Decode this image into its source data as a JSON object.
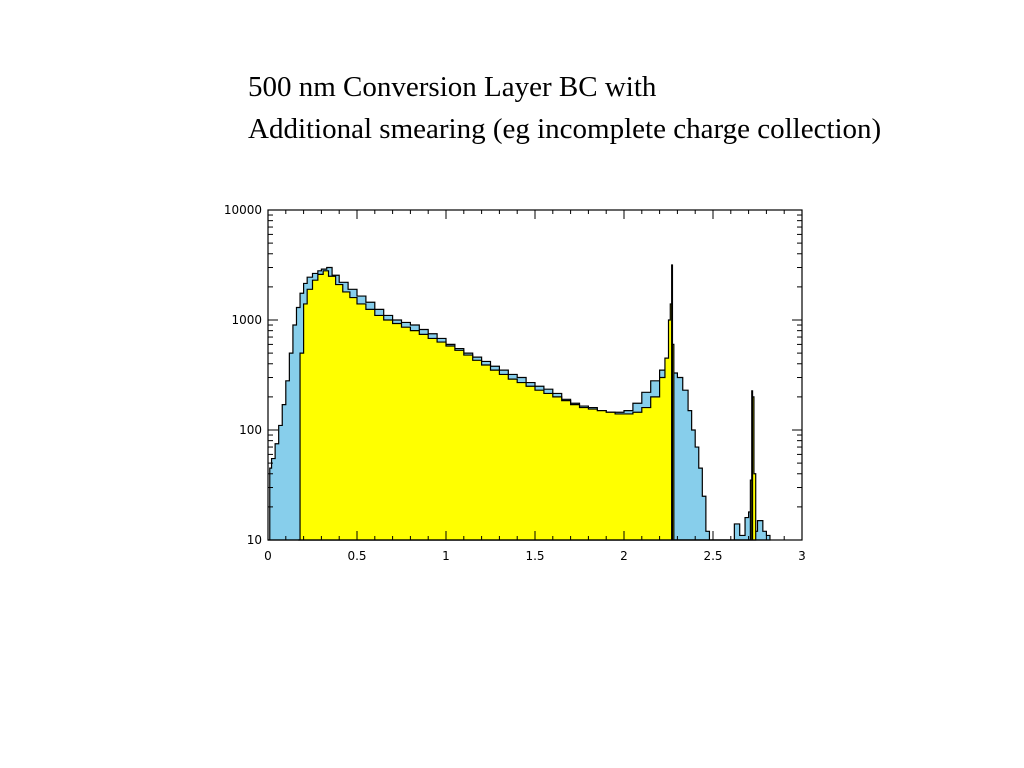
{
  "slide": {
    "title_line1": "500 nm Conversion Layer BC with",
    "title_line2": "Additional smearing (eg incomplete charge collection)"
  },
  "chart_data": {
    "type": "area",
    "title": "",
    "xlabel": "",
    "ylabel": "",
    "xlim": [
      0,
      3
    ],
    "ylim": [
      10,
      10000
    ],
    "yscale": "log",
    "grid": false,
    "x_ticks": [
      0,
      0.5,
      1,
      1.5,
      2,
      2.5,
      3
    ],
    "x_tick_labels": [
      "0",
      "0.5",
      "1",
      "1.5",
      "2",
      "2.5",
      "3"
    ],
    "y_ticks": [
      10,
      100,
      1000,
      10000
    ],
    "y_tick_labels": [
      "10",
      "100",
      "1000",
      "10000"
    ],
    "colors": {
      "series_blue": "#87CEEB",
      "series_yellow": "#FFFF00",
      "outline": "#000000"
    },
    "series": [
      {
        "color": "#87CEEB",
        "points": [
          [
            0,
            10
          ],
          [
            0.01,
            45
          ],
          [
            0.02,
            55
          ],
          [
            0.04,
            75
          ],
          [
            0.06,
            110
          ],
          [
            0.08,
            170
          ],
          [
            0.1,
            280
          ],
          [
            0.12,
            500
          ],
          [
            0.14,
            900
          ],
          [
            0.16,
            1300
          ],
          [
            0.18,
            1750
          ],
          [
            0.2,
            2150
          ],
          [
            0.22,
            2450
          ],
          [
            0.25,
            2650
          ],
          [
            0.28,
            2800
          ],
          [
            0.3,
            2900
          ],
          [
            0.33,
            3000
          ],
          [
            0.36,
            2550
          ],
          [
            0.4,
            2200
          ],
          [
            0.45,
            1900
          ],
          [
            0.5,
            1650
          ],
          [
            0.55,
            1450
          ],
          [
            0.6,
            1250
          ],
          [
            0.65,
            1100
          ],
          [
            0.7,
            1000
          ],
          [
            0.75,
            950
          ],
          [
            0.8,
            900
          ],
          [
            0.85,
            820
          ],
          [
            0.9,
            750
          ],
          [
            0.95,
            680
          ],
          [
            1.0,
            600
          ],
          [
            1.05,
            550
          ],
          [
            1.1,
            500
          ],
          [
            1.15,
            460
          ],
          [
            1.2,
            420
          ],
          [
            1.25,
            380
          ],
          [
            1.3,
            350
          ],
          [
            1.35,
            320
          ],
          [
            1.4,
            300
          ],
          [
            1.45,
            270
          ],
          [
            1.5,
            250
          ],
          [
            1.55,
            235
          ],
          [
            1.6,
            215
          ],
          [
            1.65,
            190
          ],
          [
            1.7,
            175
          ],
          [
            1.75,
            165
          ],
          [
            1.8,
            160
          ],
          [
            1.85,
            150
          ],
          [
            1.9,
            145
          ],
          [
            1.95,
            145
          ],
          [
            2.0,
            150
          ],
          [
            2.05,
            175
          ],
          [
            2.1,
            220
          ],
          [
            2.15,
            280
          ],
          [
            2.2,
            350
          ],
          [
            2.24,
            420
          ],
          [
            2.27,
            330
          ],
          [
            2.3,
            300
          ],
          [
            2.33,
            230
          ],
          [
            2.36,
            150
          ],
          [
            2.38,
            100
          ],
          [
            2.4,
            70
          ],
          [
            2.42,
            45
          ],
          [
            2.44,
            25
          ],
          [
            2.46,
            12
          ],
          [
            2.48,
            10
          ],
          [
            2.6,
            10
          ],
          [
            2.62,
            14
          ],
          [
            2.65,
            11
          ],
          [
            2.68,
            16
          ],
          [
            2.7,
            18
          ],
          [
            2.72,
            12
          ],
          [
            2.75,
            15
          ],
          [
            2.78,
            12
          ],
          [
            2.8,
            11
          ],
          [
            2.82,
            10
          ]
        ]
      },
      {
        "color": "#FFFF00",
        "points": [
          [
            0.17,
            10
          ],
          [
            0.18,
            500
          ],
          [
            0.2,
            1400
          ],
          [
            0.22,
            1900
          ],
          [
            0.25,
            2300
          ],
          [
            0.28,
            2600
          ],
          [
            0.31,
            2800
          ],
          [
            0.34,
            2500
          ],
          [
            0.38,
            2100
          ],
          [
            0.42,
            1800
          ],
          [
            0.46,
            1600
          ],
          [
            0.5,
            1400
          ],
          [
            0.55,
            1250
          ],
          [
            0.6,
            1100
          ],
          [
            0.65,
            1000
          ],
          [
            0.7,
            930
          ],
          [
            0.75,
            860
          ],
          [
            0.8,
            800
          ],
          [
            0.85,
            740
          ],
          [
            0.9,
            680
          ],
          [
            0.95,
            630
          ],
          [
            1.0,
            580
          ],
          [
            1.05,
            530
          ],
          [
            1.1,
            480
          ],
          [
            1.15,
            430
          ],
          [
            1.2,
            390
          ],
          [
            1.25,
            350
          ],
          [
            1.3,
            320
          ],
          [
            1.35,
            290
          ],
          [
            1.4,
            270
          ],
          [
            1.45,
            250
          ],
          [
            1.5,
            230
          ],
          [
            1.55,
            215
          ],
          [
            1.6,
            200
          ],
          [
            1.65,
            185
          ],
          [
            1.7,
            170
          ],
          [
            1.75,
            160
          ],
          [
            1.8,
            155
          ],
          [
            1.85,
            150
          ],
          [
            1.9,
            145
          ],
          [
            1.95,
            140
          ],
          [
            2.0,
            140
          ],
          [
            2.05,
            145
          ],
          [
            2.1,
            160
          ],
          [
            2.15,
            200
          ],
          [
            2.2,
            300
          ],
          [
            2.23,
            450
          ],
          [
            2.25,
            1000
          ],
          [
            2.26,
            1400
          ],
          [
            2.27,
            600
          ],
          [
            2.28,
            10
          ],
          [
            2.7,
            10
          ],
          [
            2.71,
            35
          ],
          [
            2.72,
            200
          ],
          [
            2.73,
            40
          ],
          [
            2.74,
            10
          ]
        ]
      }
    ],
    "spikes": [
      {
        "x": 2.27,
        "y": 3200
      },
      {
        "x": 2.72,
        "y": 230
      }
    ]
  }
}
